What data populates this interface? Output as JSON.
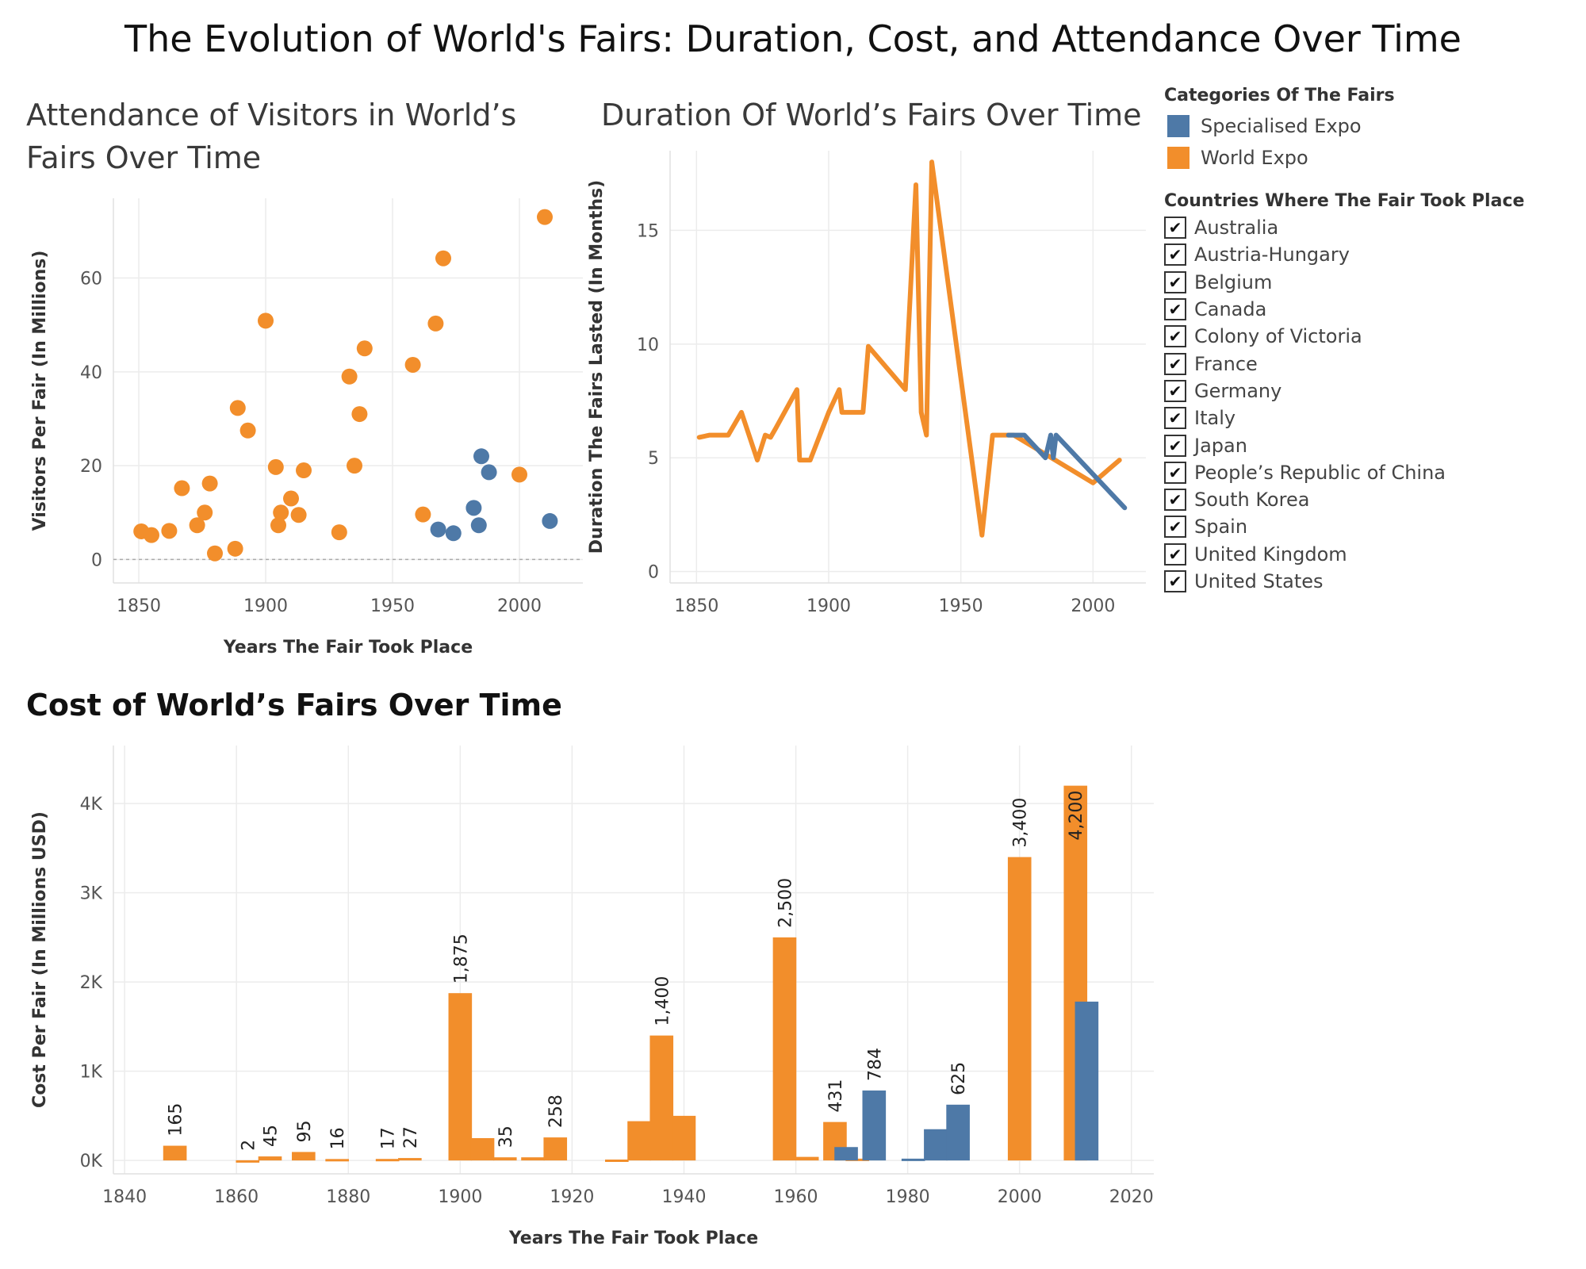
{
  "title": "The Evolution of World's Fairs: Duration, Cost, and Attendance Over Time",
  "colors": {
    "specialised": "#4e79a7",
    "world": "#f28e2b",
    "grid": "#ececec",
    "axis_text": "#555555"
  },
  "legend": {
    "heading": "Categories Of The Fairs",
    "items": [
      {
        "label": "Specialised Expo",
        "color": "#4e79a7"
      },
      {
        "label": "World Expo",
        "color": "#f28e2b"
      }
    ]
  },
  "filter": {
    "heading": "Countries Where The Fair Took Place",
    "check_glyph": "✔",
    "items": [
      "Australia",
      "Austria-Hungary",
      "Belgium",
      "Canada",
      "Colony of Victoria",
      "France",
      "Germany",
      "Italy",
      "Japan",
      "People’s Republic of China",
      "South Korea",
      "Spain",
      "United Kingdom",
      "United States"
    ]
  },
  "chart_data": [
    {
      "type": "scatter",
      "title": "Attendance of Visitors in World’s Fairs Over Time",
      "title_lines": [
        "Attendance of Visitors in World’s",
        "Fairs Over Time"
      ],
      "xlabel": "Years The Fair Took Place",
      "ylabel": "Visitors Per Fair (In Millions)",
      "xlim": [
        1840,
        2025
      ],
      "ylim": [
        -5,
        77
      ],
      "xticks": [
        1850,
        1900,
        1950,
        2000
      ],
      "yticks": [
        0,
        20,
        40,
        60
      ],
      "grid": true,
      "series": [
        {
          "category": "World Expo",
          "color": "#f28e2b",
          "points": [
            [
              1851,
              6
            ],
            [
              1855,
              5.2
            ],
            [
              1862,
              6.1
            ],
            [
              1867,
              15.2
            ],
            [
              1873,
              7.3
            ],
            [
              1876,
              10
            ],
            [
              1878,
              16.2
            ],
            [
              1880,
              1.3
            ],
            [
              1888,
              2.3
            ],
            [
              1889,
              32.3
            ],
            [
              1893,
              27.5
            ],
            [
              1900,
              50.9
            ],
            [
              1904,
              19.7
            ],
            [
              1905,
              7.3
            ],
            [
              1906,
              10
            ],
            [
              1910,
              13
            ],
            [
              1913,
              9.5
            ],
            [
              1915,
              19
            ],
            [
              1929,
              5.8
            ],
            [
              1933,
              39
            ],
            [
              1935,
              20
            ],
            [
              1937,
              31
            ],
            [
              1939,
              45
            ],
            [
              1958,
              41.5
            ],
            [
              1962,
              9.6
            ],
            [
              1967,
              50.3
            ],
            [
              1970,
              64.2
            ],
            [
              2000,
              18.1
            ],
            [
              2010,
              73
            ]
          ]
        },
        {
          "category": "Specialised Expo",
          "color": "#4e79a7",
          "points": [
            [
              1968,
              6.4
            ],
            [
              1974,
              5.6
            ],
            [
              1982,
              11
            ],
            [
              1984,
              7.3
            ],
            [
              1985,
              22
            ],
            [
              1988,
              18.6
            ],
            [
              2012,
              8.2
            ]
          ]
        }
      ]
    },
    {
      "type": "line",
      "title": "Duration Of World’s Fairs Over Time",
      "xlabel": "Years The Fair Took Place",
      "ylabel": "Duration The Fairs Lasted (In Months)",
      "xlim": [
        1840,
        2020
      ],
      "ylim": [
        -0.5,
        18.5
      ],
      "xticks": [
        1850,
        1900,
        1950,
        2000
      ],
      "yticks": [
        0,
        5,
        10,
        15
      ],
      "grid": true,
      "series": [
        {
          "category": "World Expo",
          "color": "#f28e2b",
          "points": [
            [
              1851,
              5.9
            ],
            [
              1855,
              6
            ],
            [
              1862,
              6
            ],
            [
              1867,
              7
            ],
            [
              1873,
              4.9
            ],
            [
              1876,
              6
            ],
            [
              1878,
              5.9
            ],
            [
              1880,
              6.3
            ],
            [
              1888,
              8
            ],
            [
              1889,
              4.9
            ],
            [
              1893,
              4.9
            ],
            [
              1900,
              7
            ],
            [
              1904,
              8
            ],
            [
              1905,
              7
            ],
            [
              1906,
              7
            ],
            [
              1910,
              7
            ],
            [
              1913,
              7
            ],
            [
              1915,
              9.9
            ],
            [
              1929,
              8
            ],
            [
              1933,
              17
            ],
            [
              1935,
              7
            ],
            [
              1937,
              6
            ],
            [
              1939,
              18
            ],
            [
              1958,
              1.6
            ],
            [
              1962,
              6
            ],
            [
              1967,
              6
            ],
            [
              1970,
              6
            ],
            [
              2000,
              3.9
            ],
            [
              2010,
              4.9
            ]
          ]
        },
        {
          "category": "Specialised Expo",
          "color": "#4e79a7",
          "points": [
            [
              1968,
              6
            ],
            [
              1974,
              6
            ],
            [
              1982,
              5
            ],
            [
              1984,
              6
            ],
            [
              1985,
              5
            ],
            [
              1986,
              6
            ],
            [
              2012,
              2.8
            ]
          ]
        }
      ]
    },
    {
      "type": "bar",
      "title": "Cost of World’s Fairs Over Time",
      "xlabel": "Years The Fair Took Place",
      "ylabel": "Cost Per Fair (In Millions USD)",
      "xlim": [
        1838,
        2024
      ],
      "ylim": [
        -150,
        4650
      ],
      "xticks": [
        1840,
        1860,
        1880,
        1900,
        1920,
        1940,
        1960,
        1980,
        2000,
        2020
      ],
      "yticks": [
        0,
        1000,
        2000,
        3000,
        4000
      ],
      "ytick_labels": [
        "0K",
        "1K",
        "2K",
        "3K",
        "4K"
      ],
      "bar_width_years": 4.2,
      "grid": true,
      "series": [
        {
          "category": "World Expo",
          "color": "#f28e2b",
          "bars": [
            {
              "x": 1849,
              "value": 165,
              "label": "165"
            },
            {
              "x": 1862,
              "value": 2,
              "label": "2"
            },
            {
              "x": 1866,
              "value": 45,
              "label": "45"
            },
            {
              "x": 1872,
              "value": 95,
              "label": "95"
            },
            {
              "x": 1878,
              "value": 16,
              "label": "16"
            },
            {
              "x": 1887,
              "value": 17,
              "label": "17"
            },
            {
              "x": 1891,
              "value": 27,
              "label": "27"
            },
            {
              "x": 1900,
              "value": 1875,
              "label": "1,875"
            },
            {
              "x": 1904,
              "value": 250,
              "label": ""
            },
            {
              "x": 1908,
              "value": 35,
              "label": "35"
            },
            {
              "x": 1913,
              "value": 35,
              "label": ""
            },
            {
              "x": 1917,
              "value": 258,
              "label": "258"
            },
            {
              "x": 1928,
              "value": 10,
              "label": ""
            },
            {
              "x": 1932,
              "value": 440,
              "label": ""
            },
            {
              "x": 1936,
              "value": 1400,
              "label": "1,400"
            },
            {
              "x": 1940,
              "value": 500,
              "label": ""
            },
            {
              "x": 1958,
              "value": 2500,
              "label": "2,500"
            },
            {
              "x": 1962,
              "value": 40,
              "label": ""
            },
            {
              "x": 1967,
              "value": 431,
              "label": "431"
            },
            {
              "x": 1971,
              "value": 20,
              "label": ""
            },
            {
              "x": 2000,
              "value": 3400,
              "label": "3,400"
            },
            {
              "x": 2010,
              "value": 4200,
              "label": "4,200"
            }
          ]
        },
        {
          "category": "Specialised Expo",
          "color": "#4e79a7",
          "bars": [
            {
              "x": 1969,
              "value": 150,
              "label": ""
            },
            {
              "x": 1974,
              "value": 784,
              "label": "784"
            },
            {
              "x": 1981,
              "value": 20,
              "label": ""
            },
            {
              "x": 1985,
              "value": 350,
              "label": ""
            },
            {
              "x": 1989,
              "value": 625,
              "label": "625"
            },
            {
              "x": 2012,
              "value": 1780,
              "label": ""
            }
          ]
        }
      ]
    }
  ]
}
